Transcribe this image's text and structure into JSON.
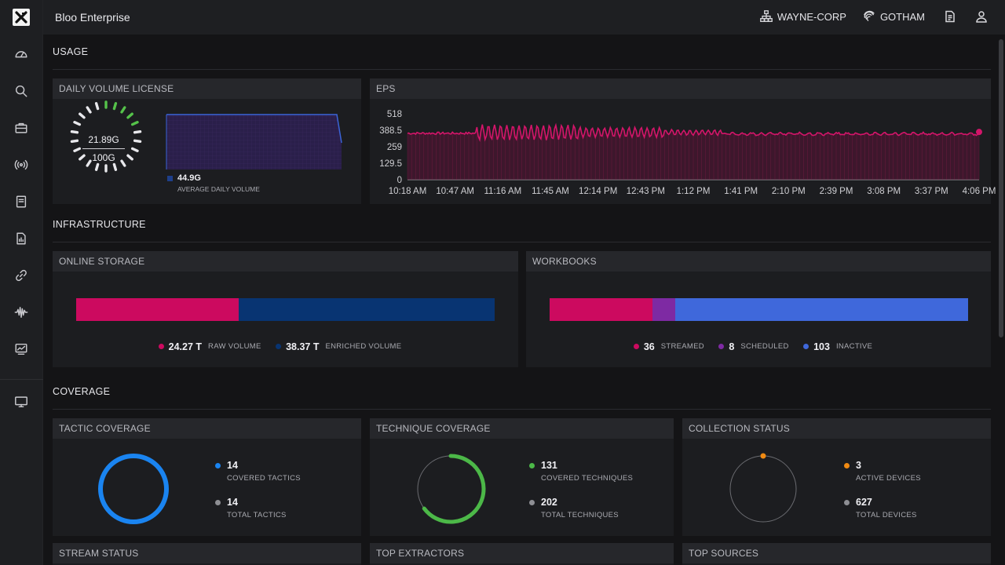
{
  "app": {
    "title": "Bloo Enterprise"
  },
  "header": {
    "org": "WAYNE-CORP",
    "tenant": "GOTHAM"
  },
  "sidebar": {
    "icons": [
      "dashboard-icon",
      "search-icon",
      "briefcase-icon",
      "broadcast-icon",
      "notebook-icon",
      "report-icon",
      "link-icon",
      "waveform-icon",
      "monitor-chart-icon",
      "desktop-icon"
    ]
  },
  "sections": {
    "usage": "USAGE",
    "infrastructure": "INFRASTRUCTURE",
    "coverage": "COVERAGE"
  },
  "daily_volume": {
    "title": "DAILY VOLUME LICENSE",
    "used": "21.89G",
    "limit": "100G",
    "average": "44.9G",
    "average_label": "AVERAGE DAILY VOLUME",
    "gauge_fraction": 0.22
  },
  "eps": {
    "title": "EPS",
    "y_ticks": [
      "518",
      "388.5",
      "259",
      "129.5",
      "0"
    ],
    "x_ticks": [
      "10:18 AM",
      "10:47 AM",
      "11:16 AM",
      "11:45 AM",
      "12:14 PM",
      "12:43 PM",
      "1:12 PM",
      "1:41 PM",
      "2:10 PM",
      "2:39 PM",
      "3:08 PM",
      "3:37 PM",
      "4:06 PM"
    ]
  },
  "online_storage": {
    "title": "ONLINE STORAGE",
    "raw_value": "24.27 T",
    "raw_label": "RAW VOLUME",
    "enriched_value": "38.37 T",
    "enriched_label": "ENRICHED VOLUME",
    "raw": 24.27,
    "enriched": 38.37
  },
  "workbooks": {
    "title": "WORKBOOKS",
    "streamed_value": "36",
    "streamed_label": "STREAMED",
    "scheduled_value": "8",
    "scheduled_label": "SCHEDULED",
    "inactive_value": "103",
    "inactive_label": "INACTIVE",
    "streamed": 36,
    "scheduled": 8,
    "inactive": 103
  },
  "tactic": {
    "title": "TACTIC COVERAGE",
    "covered": "14",
    "covered_label": "COVERED TACTICS",
    "total": "14",
    "total_label": "TOTAL TACTICS",
    "fraction": 1.0
  },
  "technique": {
    "title": "TECHNIQUE COVERAGE",
    "covered": "131",
    "covered_label": "COVERED TECHNIQUES",
    "total": "202",
    "total_label": "TOTAL TECHNIQUES",
    "fraction": 0.6485
  },
  "collection": {
    "title": "COLLECTION STATUS",
    "active": "3",
    "active_label": "ACTIVE DEVICES",
    "total": "627",
    "total_label": "TOTAL DEVICES",
    "fraction": 0.0048
  },
  "bottom_panels": {
    "stream": "STREAM STATUS",
    "extractors": "TOP EXTRACTORS",
    "sources": "TOP SOURCES"
  },
  "colors": {
    "raw": "#cc0a5f",
    "enriched": "#083472",
    "streamed": "#cc0a5f",
    "scheduled": "#7e2aa3",
    "inactive": "#3f68db",
    "tactic": "#1a84f0",
    "technique": "#4cb848",
    "collection": "#f08a12",
    "eps_line": "#d4156a"
  }
}
